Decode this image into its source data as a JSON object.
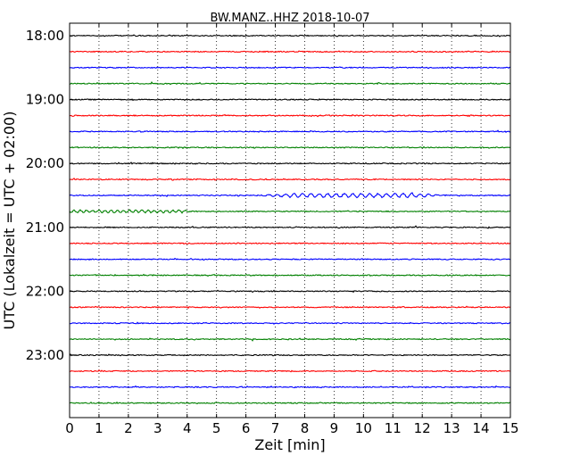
{
  "chart_data": {
    "type": "line",
    "title": "BW.MANZ..HHZ 2018-10-07",
    "xlabel": "Zeit  [min]",
    "ylabel": "UTC (Lokalzeit = UTC + 02:00)",
    "xlim": [
      0,
      15
    ],
    "x_ticks": [
      "0",
      "1",
      "2",
      "3",
      "4",
      "5",
      "6",
      "7",
      "8",
      "9",
      "10",
      "11",
      "12",
      "13",
      "14",
      "15"
    ],
    "y_tick_labels": [
      "18:00",
      "19:00",
      "20:00",
      "21:00",
      "22:00",
      "23:00"
    ],
    "grid": "vertical dotted",
    "trace_interval_min": 15,
    "traces": [
      {
        "start": "18:00",
        "color": "#000000"
      },
      {
        "start": "18:15",
        "color": "#ff0000"
      },
      {
        "start": "18:30",
        "color": "#0000ff"
      },
      {
        "start": "18:45",
        "color": "#008000"
      },
      {
        "start": "19:00",
        "color": "#000000"
      },
      {
        "start": "19:15",
        "color": "#ff0000"
      },
      {
        "start": "19:30",
        "color": "#0000ff"
      },
      {
        "start": "19:45",
        "color": "#008000"
      },
      {
        "start": "20:00",
        "color": "#000000"
      },
      {
        "start": "20:15",
        "color": "#ff0000"
      },
      {
        "start": "20:30",
        "color": "#0000ff"
      },
      {
        "start": "20:45",
        "color": "#008000"
      },
      {
        "start": "21:00",
        "color": "#000000"
      },
      {
        "start": "21:15",
        "color": "#ff0000"
      },
      {
        "start": "21:30",
        "color": "#0000ff"
      },
      {
        "start": "21:45",
        "color": "#008000"
      },
      {
        "start": "22:00",
        "color": "#000000"
      },
      {
        "start": "22:15",
        "color": "#ff0000"
      },
      {
        "start": "22:30",
        "color": "#0000ff"
      },
      {
        "start": "22:45",
        "color": "#008000"
      },
      {
        "start": "23:00",
        "color": "#000000"
      },
      {
        "start": "23:15",
        "color": "#ff0000"
      },
      {
        "start": "23:30",
        "color": "#0000ff"
      },
      {
        "start": "23:45",
        "color": "#008000"
      }
    ]
  }
}
